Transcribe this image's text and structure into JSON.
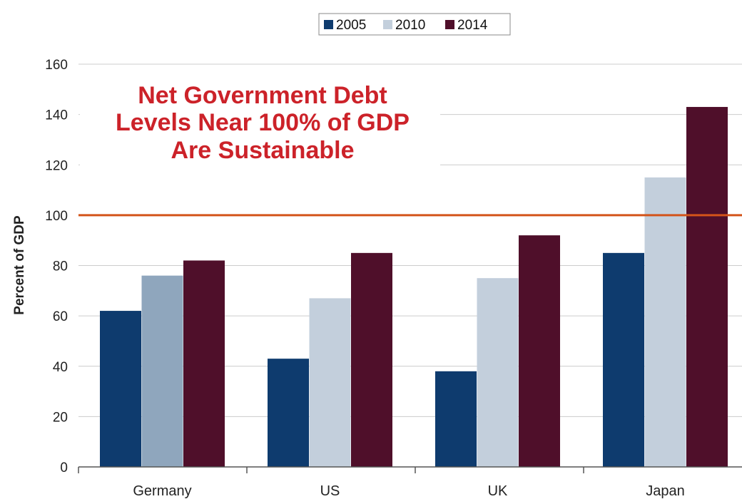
{
  "chart_data": {
    "type": "bar",
    "categories": [
      "Germany",
      "US",
      "UK",
      "Japan"
    ],
    "series": [
      {
        "name": "2005",
        "values": [
          62,
          43,
          38,
          85
        ],
        "color": "#0e3b6e"
      },
      {
        "name": "2010",
        "values": [
          76,
          67,
          75,
          115
        ],
        "color": "#c3cfdc",
        "highlight_color": "#8fa6bd",
        "highlight_category": "Germany"
      },
      {
        "name": "2014",
        "values": [
          82,
          85,
          92,
          143
        ],
        "color": "#4f0f2a"
      }
    ],
    "ylabel": "Percent of GDP",
    "ylim": [
      0,
      160
    ],
    "yticks": [
      0,
      20,
      40,
      60,
      80,
      100,
      120,
      140,
      160
    ],
    "grid": true,
    "legend_position": "top-center",
    "reference_line": {
      "value": 100,
      "color": "#d3541a"
    },
    "annotation": {
      "lines": [
        "Net Government Debt",
        "Levels Near 100% of GDP",
        "Are Sustainable"
      ],
      "color": "#cc2229"
    }
  }
}
